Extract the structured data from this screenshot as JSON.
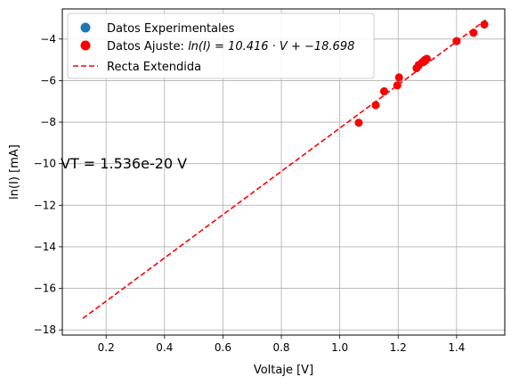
{
  "chart_data": {
    "type": "scatter",
    "xlabel": "Voltaje [V]",
    "ylabel": "ln(I) [mA]",
    "xlim": [
      0.05,
      1.565
    ],
    "ylim": [
      -18.25,
      -2.55
    ],
    "grid": true,
    "legend_position": "top-left",
    "x_ticks": [
      0.2,
      0.4,
      0.6,
      0.8,
      1.0,
      1.2,
      1.4
    ],
    "x_tick_labels": [
      "0.2",
      "0.4",
      "0.6",
      "0.8",
      "1.0",
      "1.2",
      "1.4"
    ],
    "y_ticks": [
      -18,
      -16,
      -14,
      -12,
      -10,
      -8,
      -6,
      -4
    ],
    "y_tick_labels": [
      "−18",
      "−16",
      "−14",
      "−12",
      "−10",
      "−8",
      "−6",
      "−4"
    ],
    "annotation": "VT = 1.536e-20 V",
    "series": [
      {
        "name": "Datos Experimentales",
        "kind": "scatter",
        "color": "#1f77b4",
        "x": [
          1.065,
          1.123,
          1.152,
          1.197,
          1.203,
          1.263,
          1.27,
          1.282,
          1.292,
          1.298,
          1.4,
          1.458,
          1.495
        ],
        "y": [
          -8.03,
          -7.18,
          -6.52,
          -6.23,
          -5.85,
          -5.4,
          -5.25,
          -5.12,
          -5.0,
          -4.95,
          -4.1,
          -3.7,
          -3.3
        ]
      },
      {
        "name": "Datos Ajuste: ",
        "formula": "ln(I) = 10.416 · V + −18.698",
        "kind": "scatter",
        "color": "#ff0000",
        "x": [
          1.065,
          1.123,
          1.152,
          1.197,
          1.203,
          1.263,
          1.27,
          1.282,
          1.292,
          1.298,
          1.4,
          1.458,
          1.495
        ],
        "y": [
          -8.03,
          -7.18,
          -6.52,
          -6.23,
          -5.85,
          -5.4,
          -5.25,
          -5.12,
          -5.0,
          -4.95,
          -4.1,
          -3.7,
          -3.3
        ]
      },
      {
        "name": "Recta Extendida",
        "kind": "line",
        "style": "dashed",
        "color": "#ff0000",
        "x": [
          0.12,
          1.5
        ],
        "y": [
          -17.45,
          -3.08
        ]
      }
    ]
  }
}
